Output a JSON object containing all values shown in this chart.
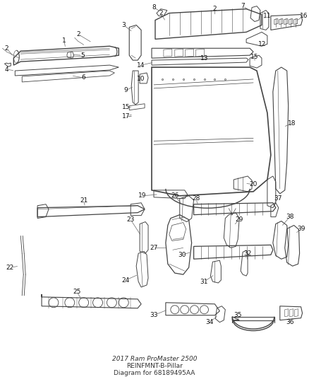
{
  "title": "2017 Ram ProMaster 2500",
  "subtitle": "REINFMNT-B-Pillar",
  "part_number": "68189495AA",
  "background_color": "#ffffff",
  "line_color": "#444444",
  "text_color": "#111111",
  "leader_color": "#666666",
  "label_fontsize": 6.5,
  "title_fontsize": 6.5,
  "fig_width": 4.38,
  "fig_height": 5.33,
  "dpi": 100
}
